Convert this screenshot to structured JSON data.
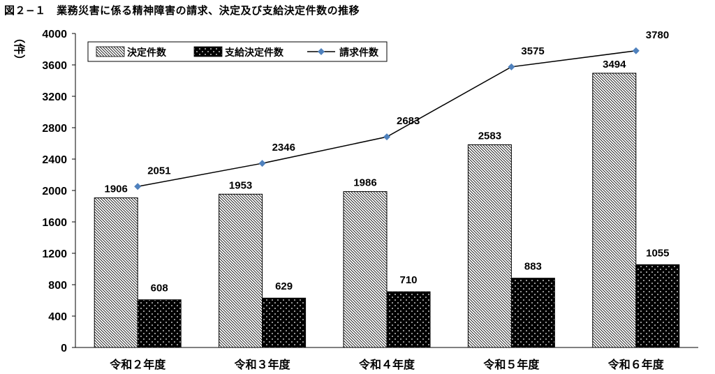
{
  "figure_title": "図２−１　業務災害に係る精神障害の請求、決定及び支給決定件数の推移",
  "chart_data": {
    "type": "bar",
    "categories": [
      "令和２年度",
      "令和３年度",
      "令和４年度",
      "令和５年度",
      "令和６年度"
    ],
    "series": [
      {
        "name": "決定件数",
        "type": "bar",
        "values": [
          1906,
          1953,
          1986,
          2583,
          3494
        ],
        "pattern": "diagonal-hatch"
      },
      {
        "name": "支給決定件数",
        "type": "bar",
        "values": [
          608,
          629,
          710,
          883,
          1055
        ],
        "pattern": "black-dotted"
      },
      {
        "name": "請求件数",
        "type": "line",
        "values": [
          2051,
          2346,
          2683,
          3575,
          3780
        ],
        "color": "#4f81bd"
      }
    ],
    "ylabel": "（件）",
    "ylim": [
      0,
      4000
    ],
    "yticks": [
      0,
      400,
      800,
      1200,
      1600,
      2000,
      2400,
      2800,
      3200,
      3600,
      4000
    ],
    "legend_position": "top-left",
    "grid": false,
    "data_labels": true
  }
}
